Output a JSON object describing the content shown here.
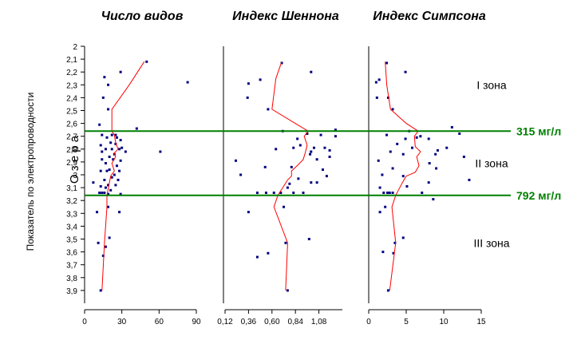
{
  "chart_data": {
    "type": "scatter",
    "ylabel": "Показатель по электропроводности",
    "y_annotation": "О з е р а",
    "ylim": [
      2,
      4
    ],
    "y_inverted": true,
    "y_ticks": [
      "2",
      "2,1",
      "2,2",
      "2,3",
      "2,4",
      "2,5",
      "2,6",
      "2,7",
      "2,8",
      "2,9",
      "3",
      "3,1",
      "3,2",
      "3,3",
      "3,4",
      "3,5",
      "3,6",
      "3,7",
      "3,8",
      "3,9"
    ],
    "thresholds": [
      {
        "y": 2.66,
        "label": "315 мг/л",
        "color": "#008000"
      },
      {
        "y": 3.16,
        "label": "792 мг/л",
        "color": "#008000"
      }
    ],
    "zones": [
      {
        "label": "I зона",
        "y": 2.3
      },
      {
        "label": "II зона",
        "y": 2.91
      },
      {
        "label": "III зона",
        "y": 3.53
      }
    ],
    "point_color": "#000080",
    "line_color": "#ff0000",
    "panels": [
      {
        "title": "Число видов",
        "xlim": [
          0,
          90
        ],
        "x_ticks": [
          "0",
          "30",
          "60",
          "90"
        ],
        "x_tick_values": [
          0,
          30,
          60,
          90
        ],
        "points": [
          [
            50,
            2.12
          ],
          [
            83,
            2.28
          ],
          [
            29,
            2.2
          ],
          [
            16,
            2.24
          ],
          [
            19,
            2.3
          ],
          [
            15,
            2.4
          ],
          [
            19,
            2.49
          ],
          [
            12,
            2.61
          ],
          [
            42,
            2.64
          ],
          [
            14,
            2.69
          ],
          [
            22,
            2.69
          ],
          [
            25,
            2.69
          ],
          [
            18,
            2.71
          ],
          [
            26,
            2.71
          ],
          [
            29,
            2.73
          ],
          [
            21,
            2.75
          ],
          [
            25,
            2.76
          ],
          [
            13,
            2.77
          ],
          [
            30,
            2.79
          ],
          [
            17,
            2.8
          ],
          [
            22,
            2.8
          ],
          [
            28,
            2.8
          ],
          [
            14,
            2.82
          ],
          [
            33,
            2.82
          ],
          [
            61,
            2.82
          ],
          [
            24,
            2.84
          ],
          [
            20,
            2.86
          ],
          [
            14,
            2.88
          ],
          [
            23,
            2.88
          ],
          [
            29,
            2.89
          ],
          [
            17,
            2.91
          ],
          [
            26,
            2.93
          ],
          [
            20,
            2.96
          ],
          [
            13,
            2.97
          ],
          [
            18,
            2.97
          ],
          [
            28,
            2.97
          ],
          [
            24,
            3.0
          ],
          [
            22,
            3.02
          ],
          [
            16,
            3.04
          ],
          [
            27,
            3.04
          ],
          [
            7,
            3.06
          ],
          [
            19,
            3.08
          ],
          [
            25,
            3.08
          ],
          [
            13,
            3.09
          ],
          [
            17,
            3.1
          ],
          [
            21,
            3.12
          ],
          [
            12,
            3.14
          ],
          [
            16,
            3.14
          ],
          [
            14,
            3.14
          ],
          [
            19,
            3.15
          ],
          [
            29,
            3.15
          ],
          [
            19,
            3.25
          ],
          [
            10,
            3.29
          ],
          [
            28,
            3.29
          ],
          [
            20,
            3.49
          ],
          [
            11,
            3.53
          ],
          [
            17,
            3.56
          ],
          [
            15,
            3.63
          ],
          [
            13,
            3.9
          ]
        ],
        "line": [
          [
            48,
            2.12
          ],
          [
            36,
            2.3
          ],
          [
            22,
            2.49
          ],
          [
            22,
            2.66
          ],
          [
            24,
            2.69
          ],
          [
            25,
            2.75
          ],
          [
            27,
            2.8
          ],
          [
            24,
            2.83
          ],
          [
            25,
            2.86
          ],
          [
            22,
            2.91
          ],
          [
            24,
            2.97
          ],
          [
            21,
            3.01
          ],
          [
            20,
            3.06
          ],
          [
            18,
            3.16
          ],
          [
            18,
            3.25
          ],
          [
            16,
            3.53
          ],
          [
            14,
            3.9
          ]
        ]
      },
      {
        "title": "Индекс Шеннона",
        "xlim": [
          0.12,
          1.32
        ],
        "x_ticks": [
          "0,12",
          "0,36",
          "0,60",
          "0,84",
          "1,08"
        ],
        "x_tick_values": [
          0.12,
          0.36,
          0.6,
          0.84,
          1.08
        ],
        "points": [
          [
            0.7,
            2.13
          ],
          [
            1.0,
            2.2
          ],
          [
            0.36,
            2.29
          ],
          [
            0.48,
            2.26
          ],
          [
            0.56,
            2.49
          ],
          [
            0.35,
            2.4
          ],
          [
            0.71,
            2.66
          ],
          [
            1.25,
            2.65
          ],
          [
            1.25,
            2.7
          ],
          [
            0.86,
            2.72
          ],
          [
            0.96,
            2.68
          ],
          [
            1.1,
            2.69
          ],
          [
            0.82,
            2.79
          ],
          [
            0.89,
            2.77
          ],
          [
            1.03,
            2.79
          ],
          [
            1.14,
            2.79
          ],
          [
            0.64,
            2.8
          ],
          [
            1.0,
            2.82
          ],
          [
            1.19,
            2.81
          ],
          [
            0.99,
            2.84
          ],
          [
            1.19,
            2.86
          ],
          [
            0.23,
            2.89
          ],
          [
            1.06,
            2.88
          ],
          [
            0.53,
            2.94
          ],
          [
            0.8,
            2.94
          ],
          [
            1.12,
            2.96
          ],
          [
            0.28,
            3.0
          ],
          [
            1.16,
            3.01
          ],
          [
            0.87,
            3.03
          ],
          [
            1.06,
            3.06
          ],
          [
            1.0,
            3.06
          ],
          [
            0.78,
            3.07
          ],
          [
            0.76,
            3.1
          ],
          [
            0.62,
            3.14
          ],
          [
            0.69,
            3.14
          ],
          [
            0.82,
            3.14
          ],
          [
            0.92,
            3.14
          ],
          [
            0.54,
            3.14
          ],
          [
            0.45,
            3.14
          ],
          [
            0.72,
            3.25
          ],
          [
            0.36,
            3.29
          ],
          [
            0.74,
            3.53
          ],
          [
            0.98,
            3.5
          ],
          [
            0.56,
            3.61
          ],
          [
            0.45,
            3.64
          ],
          [
            0.76,
            3.9
          ]
        ],
        "line": [
          [
            0.7,
            2.12
          ],
          [
            0.64,
            2.25
          ],
          [
            0.6,
            2.49
          ],
          [
            0.86,
            2.61
          ],
          [
            0.97,
            2.66
          ],
          [
            0.93,
            2.7
          ],
          [
            0.96,
            2.77
          ],
          [
            0.94,
            2.83
          ],
          [
            0.92,
            2.88
          ],
          [
            0.87,
            2.92
          ],
          [
            0.8,
            2.97
          ],
          [
            0.8,
            3.01
          ],
          [
            0.76,
            3.04
          ],
          [
            0.66,
            3.16
          ],
          [
            0.62,
            3.25
          ],
          [
            0.76,
            3.53
          ],
          [
            0.74,
            3.9
          ]
        ]
      },
      {
        "title": "Индекс Симпсона",
        "xlim": [
          0,
          15
        ],
        "x_ticks": [
          "0",
          "5",
          "10",
          "15"
        ],
        "x_tick_values": [
          0,
          5,
          10,
          15
        ],
        "points": [
          [
            2.4,
            2.13
          ],
          [
            4.9,
            2.2
          ],
          [
            1.0,
            2.28
          ],
          [
            1.4,
            2.26
          ],
          [
            2.6,
            2.4
          ],
          [
            1.1,
            2.4
          ],
          [
            3.2,
            2.49
          ],
          [
            11.1,
            2.63
          ],
          [
            12.1,
            2.68
          ],
          [
            2.4,
            2.69
          ],
          [
            5.4,
            2.66
          ],
          [
            6.4,
            2.71
          ],
          [
            6.9,
            2.7
          ],
          [
            4.9,
            2.72
          ],
          [
            8.0,
            2.72
          ],
          [
            3.8,
            2.76
          ],
          [
            5.8,
            2.79
          ],
          [
            10.4,
            2.79
          ],
          [
            9.2,
            2.81
          ],
          [
            2.9,
            2.82
          ],
          [
            8.9,
            2.84
          ],
          [
            4.6,
            2.84
          ],
          [
            1.3,
            2.89
          ],
          [
            12.7,
            2.86
          ],
          [
            8.1,
            2.91
          ],
          [
            3.2,
            2.95
          ],
          [
            9.0,
            2.95
          ],
          [
            1.8,
            3.0
          ],
          [
            4.6,
            3.01
          ],
          [
            13.4,
            3.04
          ],
          [
            8.0,
            3.06
          ],
          [
            5.1,
            3.09
          ],
          [
            1.5,
            3.1
          ],
          [
            2.0,
            3.14
          ],
          [
            3.2,
            3.14
          ],
          [
            7.1,
            3.14
          ],
          [
            2.8,
            3.14
          ],
          [
            2.5,
            3.14
          ],
          [
            8.6,
            3.19
          ],
          [
            2.2,
            3.25
          ],
          [
            1.5,
            3.29
          ],
          [
            4.6,
            3.49
          ],
          [
            3.5,
            3.53
          ],
          [
            1.9,
            3.6
          ],
          [
            3.3,
            3.61
          ],
          [
            2.6,
            3.9
          ]
        ],
        "line": [
          [
            2.2,
            2.12
          ],
          [
            2.4,
            2.3
          ],
          [
            2.9,
            2.49
          ],
          [
            5.0,
            2.6
          ],
          [
            6.6,
            2.66
          ],
          [
            6.1,
            2.7
          ],
          [
            6.2,
            2.78
          ],
          [
            6.9,
            2.82
          ],
          [
            6.4,
            2.86
          ],
          [
            6.7,
            2.93
          ],
          [
            6.2,
            2.98
          ],
          [
            5.0,
            3.01
          ],
          [
            4.5,
            3.06
          ],
          [
            3.6,
            3.16
          ],
          [
            3.1,
            3.25
          ],
          [
            3.6,
            3.53
          ],
          [
            2.8,
            3.9
          ]
        ]
      }
    ]
  }
}
